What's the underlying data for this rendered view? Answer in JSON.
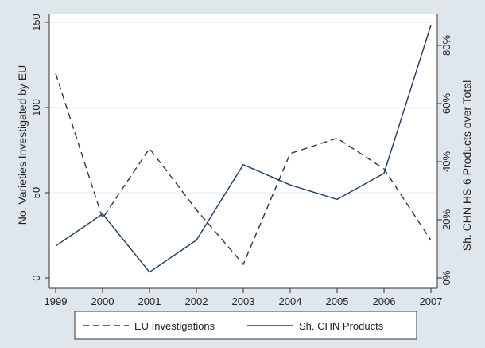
{
  "chart_data": {
    "type": "line",
    "x": [
      1999,
      2000,
      2001,
      2002,
      2003,
      2004,
      2005,
      2006,
      2007
    ],
    "x_tick_labels": [
      "1999",
      "2000",
      "2001",
      "2002",
      "2003",
      "2004",
      "2005",
      "2006",
      "2007"
    ],
    "y_left": {
      "label": "No. Varieties Investigated by EU",
      "ylim": [
        0,
        150
      ],
      "ticks": [
        0,
        50,
        100,
        150
      ],
      "tick_labels": [
        "0",
        "50",
        "100",
        "150"
      ]
    },
    "y_right": {
      "label": "Sh. CHN HS-6 Products over Total",
      "ylim": [
        0,
        0.88
      ],
      "ticks": [
        0,
        0.2,
        0.4,
        0.6,
        0.8
      ],
      "tick_labels": [
        "0%",
        "20%",
        "40%",
        "60%",
        "80%"
      ]
    },
    "series": [
      {
        "name": "EU Investigations",
        "axis": "left",
        "style": "dashed",
        "values": [
          120,
          35,
          76,
          40,
          8,
          73,
          82,
          64,
          22
        ]
      },
      {
        "name": "Sh. CHN Products",
        "axis": "right",
        "style": "solid",
        "values": [
          0.11,
          0.22,
          0.02,
          0.13,
          0.39,
          0.32,
          0.27,
          0.36,
          0.87
        ]
      }
    ],
    "legend": {
      "position": "bottom",
      "entries": [
        "EU Investigations",
        "Sh. CHN Products"
      ]
    },
    "grid": "horizontal",
    "colors": {
      "background": "#dfe6ec",
      "plot": "#ffffff",
      "line": "#1f3a5f",
      "grid": "#e6ebef",
      "axis": "#333333"
    }
  }
}
